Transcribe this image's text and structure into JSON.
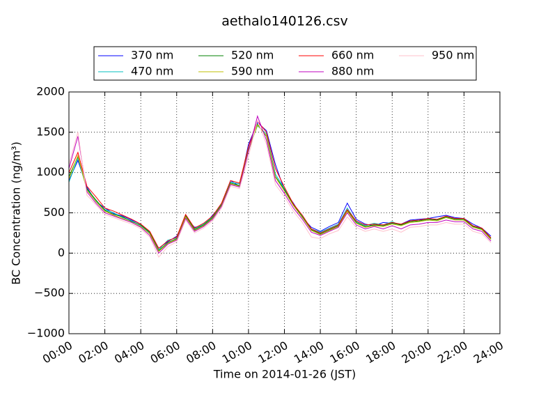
{
  "chart_data": {
    "type": "line",
    "title": "aethalo140126.csv",
    "xlabel": "Time on 2014-01-26 (JST)",
    "ylabel": "BC Concentration (ng/m³)",
    "x": [
      0,
      0.5,
      1,
      1.5,
      2,
      2.5,
      3,
      3.5,
      4,
      4.5,
      5,
      5.5,
      6,
      6.5,
      7,
      7.5,
      8,
      8.5,
      9,
      9.5,
      10,
      10.5,
      11,
      11.5,
      12,
      12.5,
      13,
      13.5,
      14,
      14.5,
      15,
      15.5,
      16,
      16.5,
      17,
      17.5,
      18,
      18.5,
      19,
      19.5,
      20,
      20.5,
      21,
      21.5,
      22,
      22.5,
      23,
      23.5
    ],
    "xlim": [
      0,
      24
    ],
    "xticks": [
      {
        "value": 0,
        "label": "00:00"
      },
      {
        "value": 2,
        "label": "02:00"
      },
      {
        "value": 4,
        "label": "04:00"
      },
      {
        "value": 6,
        "label": "06:00"
      },
      {
        "value": 8,
        "label": "08:00"
      },
      {
        "value": 10,
        "label": "10:00"
      },
      {
        "value": 12,
        "label": "12:00"
      },
      {
        "value": 14,
        "label": "14:00"
      },
      {
        "value": 16,
        "label": "16:00"
      },
      {
        "value": 18,
        "label": "18:00"
      },
      {
        "value": 20,
        "label": "20:00"
      },
      {
        "value": 22,
        "label": "22:00"
      },
      {
        "value": 24,
        "label": "24:00"
      }
    ],
    "ylim": [
      -1000,
      2000
    ],
    "yticks": [
      {
        "value": -1000,
        "label": "−1000"
      },
      {
        "value": -500,
        "label": "−500"
      },
      0,
      500,
      1000,
      1500,
      2000
    ],
    "grid": true,
    "legend": "top",
    "series": [
      {
        "name": "370 nm",
        "color": "#0000ff",
        "values": [
          900,
          1150,
          820,
          640,
          560,
          490,
          460,
          410,
          360,
          240,
          60,
          140,
          210,
          440,
          320,
          340,
          470,
          590,
          900,
          830,
          1350,
          1620,
          1520,
          1100,
          780,
          620,
          440,
          320,
          270,
          330,
          380,
          620,
          420,
          360,
          340,
          380,
          370,
          360,
          410,
          420,
          430,
          450,
          470,
          440,
          430,
          360,
          310,
          210
        ]
      },
      {
        "name": "470 nm",
        "color": "#00bfbf",
        "values": [
          880,
          1180,
          790,
          650,
          540,
          500,
          440,
          400,
          340,
          250,
          40,
          160,
          190,
          460,
          300,
          360,
          450,
          610,
          880,
          860,
          1290,
          1580,
          1480,
          980,
          800,
          590,
          460,
          300,
          260,
          310,
          360,
          560,
          390,
          340,
          370,
          350,
          390,
          340,
          400,
          410,
          410,
          420,
          440,
          430,
          410,
          340,
          290,
          190
        ]
      },
      {
        "name": "520 nm",
        "color": "#008000",
        "values": [
          950,
          1200,
          800,
          660,
          530,
          480,
          450,
          390,
          350,
          260,
          30,
          130,
          180,
          470,
          290,
          350,
          440,
          600,
          870,
          840,
          1280,
          1600,
          1450,
          950,
          790,
          600,
          450,
          290,
          240,
          290,
          340,
          530,
          380,
          330,
          350,
          340,
          370,
          350,
          390,
          400,
          420,
          410,
          450,
          420,
          420,
          330,
          300,
          180
        ]
      },
      {
        "name": "590 nm",
        "color": "#bfbf00",
        "values": [
          920,
          1210,
          780,
          640,
          520,
          470,
          430,
          380,
          330,
          240,
          20,
          120,
          170,
          450,
          280,
          340,
          430,
          590,
          860,
          830,
          1270,
          1590,
          1460,
          940,
          770,
          590,
          440,
          280,
          230,
          280,
          330,
          520,
          370,
          320,
          340,
          330,
          360,
          340,
          380,
          390,
          410,
          400,
          440,
          410,
          410,
          320,
          290,
          170
        ]
      },
      {
        "name": "660 nm",
        "color": "#ff0000",
        "values": [
          1000,
          1250,
          830,
          700,
          560,
          520,
          470,
          420,
          360,
          270,
          60,
          150,
          200,
          480,
          310,
          370,
          460,
          620,
          900,
          870,
          1320,
          1640,
          1500,
          1050,
          820,
          610,
          470,
          300,
          250,
          300,
          350,
          540,
          400,
          350,
          360,
          350,
          380,
          360,
          400,
          410,
          430,
          420,
          460,
          430,
          430,
          340,
          310,
          190
        ]
      },
      {
        "name": "880 nm",
        "color": "#bf00bf",
        "values": [
          1050,
          1450,
          760,
          620,
          500,
          460,
          420,
          380,
          320,
          220,
          0,
          110,
          160,
          430,
          270,
          330,
          420,
          580,
          850,
          820,
          1260,
          1700,
          1400,
          900,
          740,
          560,
          420,
          260,
          220,
          270,
          320,
          500,
          350,
          300,
          330,
          300,
          340,
          300,
          350,
          360,
          380,
          380,
          410,
          390,
          390,
          300,
          270,
          150
        ]
      },
      {
        "name": "950 nm",
        "color": "#ffc0cb",
        "values": [
          1100,
          1500,
          720,
          600,
          480,
          440,
          400,
          360,
          300,
          200,
          -50,
          80,
          140,
          410,
          250,
          310,
          400,
          560,
          830,
          800,
          1200,
          1650,
          1350,
          850,
          700,
          520,
          380,
          200,
          180,
          240,
          280,
          450,
          320,
          270,
          300,
          270,
          300,
          260,
          320,
          330,
          350,
          350,
          380,
          360,
          360,
          270,
          240,
          130
        ]
      }
    ]
  }
}
